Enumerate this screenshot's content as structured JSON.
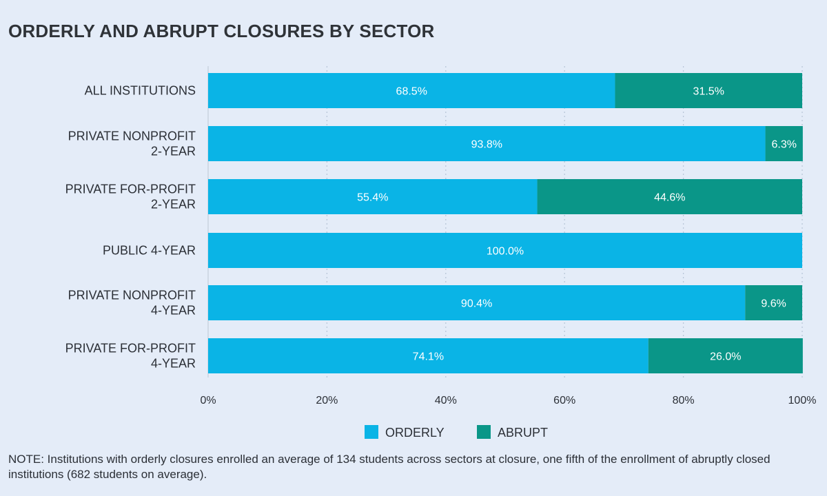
{
  "title": "ORDERLY AND ABRUPT CLOSURES BY SECTOR",
  "note": "NOTE: Institutions with orderly closures enrolled an average of 134 students across sectors at closure, one fifth of the enrollment of abruptly closed institutions (682 students on average).",
  "colors": {
    "orderly": "#0ab4e6",
    "abrupt": "#0a9688",
    "grid": "#b8c6d8",
    "axis": "#c8d2de"
  },
  "chart_data": {
    "type": "bar",
    "orientation": "horizontal",
    "stacked": true,
    "title": "ORDERLY AND ABRUPT CLOSURES BY SECTOR",
    "categories": [
      [
        "ALL INSTITUTIONS"
      ],
      [
        "PRIVATE NONPROFIT",
        "2-YEAR"
      ],
      [
        "PRIVATE FOR-PROFIT",
        "2-YEAR"
      ],
      [
        "PUBLIC 4-YEAR"
      ],
      [
        "PRIVATE NONPROFIT",
        "4-YEAR"
      ],
      [
        "PRIVATE FOR-PROFIT",
        "4-YEAR"
      ]
    ],
    "series": [
      {
        "name": "ORDERLY",
        "values": [
          68.5,
          93.8,
          55.4,
          100.0,
          90.4,
          74.1
        ],
        "labels": [
          "68.5%",
          "93.8%",
          "55.4%",
          "100.0%",
          "90.4%",
          "74.1%"
        ]
      },
      {
        "name": "ABRUPT",
        "values": [
          31.5,
          6.3,
          44.6,
          0,
          9.6,
          26.0
        ],
        "labels": [
          "31.5%",
          "6.3%",
          "44.6%",
          "",
          "9.6%",
          "26.0%"
        ]
      }
    ],
    "xlim": [
      0,
      100
    ],
    "xticks": [
      "0%",
      "20%",
      "40%",
      "60%",
      "80%",
      "100%"
    ],
    "grid": "vertical dotted",
    "legend": "bottom-center"
  }
}
